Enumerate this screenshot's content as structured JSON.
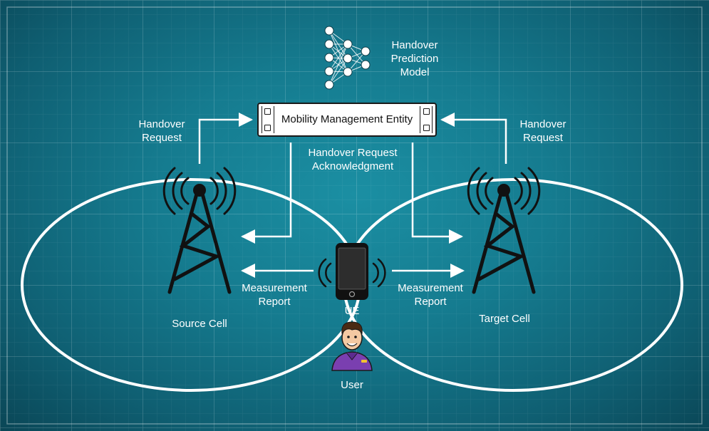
{
  "mme": {
    "label": "Mobility Management Entity"
  },
  "model": {
    "label_line1": "Handover",
    "label_line2": "Prediction",
    "label_line3": "Model"
  },
  "handover_request_left": {
    "line1": "Handover",
    "line2": "Request"
  },
  "handover_request_right": {
    "line1": "Handover",
    "line2": "Request"
  },
  "handover_ack": {
    "line1": "Handover Request",
    "line2": "Acknowledgment"
  },
  "measurement_left": {
    "line1": "Measurement",
    "line2": "Report"
  },
  "measurement_right": {
    "line1": "Measurement",
    "line2": "Report"
  },
  "source_cell": {
    "label": "Source Cell"
  },
  "target_cell": {
    "label": "Target Cell"
  },
  "ue": {
    "label": "UE"
  },
  "user": {
    "label": "User"
  },
  "colors": {
    "background": "#157b8f",
    "lines": "#ffffff",
    "tower": "#111111",
    "user_shirt": "#7a3fb0"
  }
}
